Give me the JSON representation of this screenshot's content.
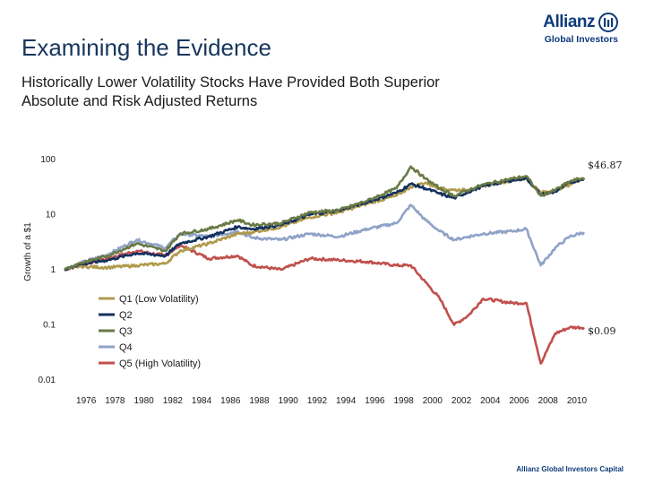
{
  "header": {
    "title": "Examining the Evidence",
    "subtitle": "Historically Lower Volatility Stocks Have Provided Both Superior Absolute and Risk Adjusted Returns"
  },
  "logo": {
    "brand": "Allianz",
    "sub": "Global Investors",
    "icon": "allianz-eagle-icon"
  },
  "footer": {
    "text": "Allianz Global Investors Capital"
  },
  "chart_data": {
    "type": "line",
    "title": "",
    "xlabel": "",
    "ylabel": "Growth of a $1",
    "yscale": "log",
    "ylim": [
      0.01,
      100
    ],
    "y_ticks": [
      "100",
      "10",
      "1",
      "0.1",
      "0.01"
    ],
    "x_range": [
      1975,
      2011
    ],
    "x_ticks": [
      "1976",
      "1978",
      "1980",
      "1982",
      "1984",
      "1986",
      "1988",
      "1990",
      "1992",
      "1994",
      "1996",
      "1998",
      "2000",
      "2002",
      "2004",
      "2006",
      "2008",
      "2010"
    ],
    "end_labels": {
      "high": "$46.87",
      "low": "$0.09"
    },
    "series": [
      {
        "name": "Q1 (Low Volatility)",
        "color": "#b09a4c",
        "x": [
          1975,
          1976,
          1978,
          1980,
          1982,
          1983,
          1985,
          1987,
          1988,
          1990,
          1992,
          1994,
          1996,
          1998,
          1999,
          2000,
          2001,
          2002,
          2003,
          2004,
          2006,
          2007,
          2008,
          2009,
          2010,
          2011
        ],
        "values": [
          1.0,
          1.15,
          1.1,
          1.2,
          1.3,
          2.2,
          3.0,
          4.5,
          4.8,
          6.0,
          9.0,
          11.0,
          16.0,
          22.0,
          32.0,
          38.0,
          30.0,
          28.0,
          28.0,
          33.0,
          42.0,
          45.0,
          25.0,
          28.0,
          35.0,
          46.87
        ]
      },
      {
        "name": "Q2",
        "color": "#13305f",
        "x": [
          1975,
          1976,
          1978,
          1980,
          1982,
          1983,
          1985,
          1987,
          1988,
          1990,
          1992,
          1994,
          1996,
          1998,
          1999,
          2000,
          2001,
          2002,
          2003,
          2004,
          2006,
          2007,
          2008,
          2009,
          2010,
          2011
        ],
        "values": [
          1.0,
          1.25,
          1.5,
          2.0,
          1.8,
          3.0,
          4.0,
          6.0,
          5.5,
          6.5,
          10.0,
          12.0,
          17.0,
          25.0,
          36.0,
          30.0,
          24.0,
          20.0,
          26.0,
          33.0,
          42.0,
          46.0,
          23.0,
          26.0,
          38.0,
          46.0
        ]
      },
      {
        "name": "Q3",
        "color": "#6a7a45",
        "x": [
          1975,
          1976,
          1978,
          1980,
          1982,
          1983,
          1985,
          1987,
          1988,
          1990,
          1992,
          1994,
          1996,
          1998,
          1999,
          2000,
          2001,
          2002,
          2003,
          2004,
          2006,
          2007,
          2008,
          2009,
          2010,
          2011
        ],
        "values": [
          1.0,
          1.3,
          1.8,
          3.0,
          2.2,
          4.5,
          5.5,
          8.0,
          6.5,
          7.0,
          11.0,
          12.0,
          18.0,
          30.0,
          75.0,
          45.0,
          30.0,
          22.0,
          28.0,
          35.0,
          45.0,
          50.0,
          22.0,
          28.0,
          40.0,
          47.0
        ]
      },
      {
        "name": "Q4",
        "color": "#8fa2c7",
        "x": [
          1975,
          1976,
          1978,
          1980,
          1982,
          1983,
          1985,
          1987,
          1988,
          1990,
          1992,
          1994,
          1996,
          1998,
          1999,
          2000,
          2001,
          2002,
          2003,
          2004,
          2006,
          2007,
          2008,
          2009,
          2010,
          2011
        ],
        "values": [
          1.0,
          1.3,
          1.9,
          3.5,
          2.5,
          4.5,
          4.0,
          5.0,
          3.8,
          3.5,
          4.5,
          4.0,
          5.5,
          7.0,
          15.0,
          8.0,
          5.0,
          3.5,
          4.0,
          4.5,
          5.0,
          5.5,
          1.2,
          2.5,
          4.0,
          4.8
        ]
      },
      {
        "name": "Q5 (High Volatility)",
        "color": "#c0504d",
        "x": [
          1975,
          1976,
          1978,
          1980,
          1982,
          1983,
          1985,
          1987,
          1988,
          1990,
          1992,
          1994,
          1996,
          1998,
          1999,
          2000,
          2001,
          2002,
          2003,
          2004,
          2006,
          2007,
          2008,
          2009,
          2010,
          2011
        ],
        "values": [
          1.0,
          1.2,
          1.6,
          2.2,
          1.8,
          2.8,
          1.6,
          1.8,
          1.2,
          1.0,
          1.6,
          1.5,
          1.4,
          1.2,
          1.2,
          0.6,
          0.3,
          0.1,
          0.15,
          0.3,
          0.25,
          0.25,
          0.02,
          0.07,
          0.09,
          0.09
        ]
      }
    ],
    "legend_position": "center"
  }
}
